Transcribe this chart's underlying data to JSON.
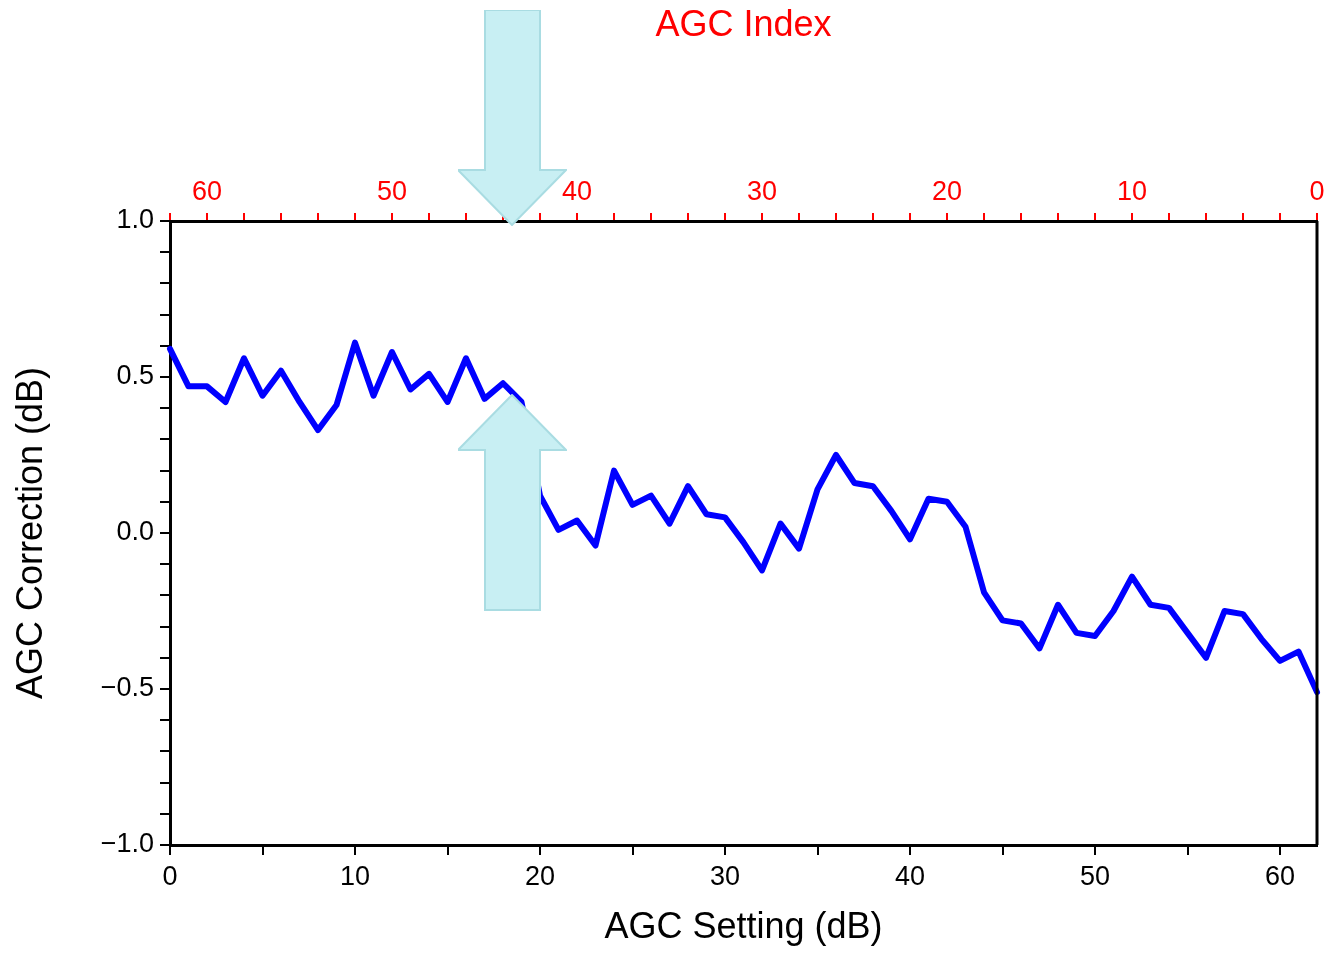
{
  "chart_data": {
    "type": "line",
    "xlabel": "AGC Setting (dB)",
    "ylabel": "AGC Correction (dB)",
    "x2label": "AGC Index",
    "x": [
      0,
      1,
      2,
      3,
      4,
      5,
      6,
      7,
      8,
      9,
      10,
      11,
      12,
      13,
      14,
      15,
      16,
      17,
      18,
      19,
      20,
      21,
      22,
      23,
      24,
      25,
      26,
      27,
      28,
      29,
      30,
      31,
      32,
      33,
      34,
      35,
      36,
      37,
      38,
      39,
      40,
      41,
      42,
      43,
      44,
      45,
      46,
      47,
      48,
      49,
      50,
      51,
      52,
      53,
      54,
      55,
      56,
      57,
      58,
      59,
      60,
      61,
      62
    ],
    "series": [
      {
        "color": "#0000ff",
        "values": [
          0.59,
          0.47,
          0.47,
          0.42,
          0.56,
          0.44,
          0.52,
          0.42,
          0.33,
          0.41,
          0.61,
          0.44,
          0.58,
          0.46,
          0.51,
          0.42,
          0.56,
          0.43,
          0.48,
          0.42,
          0.12,
          0.01,
          0.04,
          -0.04,
          0.2,
          0.09,
          0.12,
          0.03,
          0.15,
          0.06,
          0.05,
          -0.03,
          -0.12,
          0.03,
          -0.05,
          0.14,
          0.25,
          0.16,
          0.15,
          0.07,
          -0.02,
          0.11,
          0.1,
          0.02,
          -0.19,
          -0.28,
          -0.29,
          -0.37,
          -0.23,
          -0.32,
          -0.33,
          -0.25,
          -0.14,
          -0.23,
          -0.24,
          -0.32,
          -0.4,
          -0.25,
          -0.26,
          -0.34,
          -0.41,
          -0.38,
          -0.51
        ]
      }
    ],
    "xlim": [
      0,
      62
    ],
    "xticks": [
      0,
      {
        "value": 5,
        "label": null
      },
      10,
      {
        "value": 15,
        "label": null
      },
      20,
      {
        "value": 25,
        "label": null
      },
      30,
      {
        "value": 35,
        "label": null
      },
      40,
      {
        "value": 45,
        "label": null
      },
      50,
      {
        "value": 55,
        "label": null
      },
      60
    ],
    "ylim": [
      -1,
      1
    ],
    "yticks": [
      {
        "value": -1,
        "label": "−1.0"
      },
      {
        "value": -0.9,
        "label": null
      },
      {
        "value": -0.8,
        "label": null
      },
      {
        "value": -0.7,
        "label": null
      },
      {
        "value": -0.6,
        "label": null
      },
      {
        "value": -0.5,
        "label": "−0.5"
      },
      {
        "value": -0.4,
        "label": null
      },
      {
        "value": -0.3,
        "label": null
      },
      {
        "value": -0.2,
        "label": null
      },
      {
        "value": -0.1,
        "label": null
      },
      {
        "value": 0,
        "label": "0.0"
      },
      {
        "value": 0.1,
        "label": null
      },
      {
        "value": 0.2,
        "label": null
      },
      {
        "value": 0.3,
        "label": null
      },
      {
        "value": 0.4,
        "label": null
      },
      {
        "value": 0.5,
        "label": "0.5"
      },
      {
        "value": 0.6,
        "label": null
      },
      {
        "value": 0.7,
        "label": null
      },
      {
        "value": 0.8,
        "label": null
      },
      {
        "value": 0.9,
        "label": null
      },
      {
        "value": 1,
        "label": "1.0"
      }
    ],
    "x2lim": [
      62,
      0
    ],
    "x2ticks": [
      {
        "value": 62,
        "label": null
      },
      60,
      {
        "value": 58,
        "label": null
      },
      {
        "value": 56,
        "label": null
      },
      {
        "value": 54,
        "label": null
      },
      {
        "value": 52,
        "label": null
      },
      50,
      {
        "value": 48,
        "label": null
      },
      {
        "value": 46,
        "label": null
      },
      {
        "value": 44,
        "label": null
      },
      {
        "value": 42,
        "label": null
      },
      40,
      {
        "value": 38,
        "label": null
      },
      {
        "value": 36,
        "label": null
      },
      {
        "value": 34,
        "label": null
      },
      {
        "value": 32,
        "label": null
      },
      30,
      {
        "value": 28,
        "label": null
      },
      {
        "value": 26,
        "label": null
      },
      {
        "value": 24,
        "label": null
      },
      {
        "value": 22,
        "label": null
      },
      20,
      {
        "value": 18,
        "label": null
      },
      {
        "value": 16,
        "label": null
      },
      {
        "value": 14,
        "label": null
      },
      {
        "value": 12,
        "label": null
      },
      10,
      {
        "value": 8,
        "label": null
      },
      {
        "value": 6,
        "label": null
      },
      {
        "value": 4,
        "label": null
      },
      {
        "value": 2,
        "label": null
      },
      0
    ],
    "grid": false,
    "legend": false,
    "marker": "none",
    "line_style": "solid"
  }
}
